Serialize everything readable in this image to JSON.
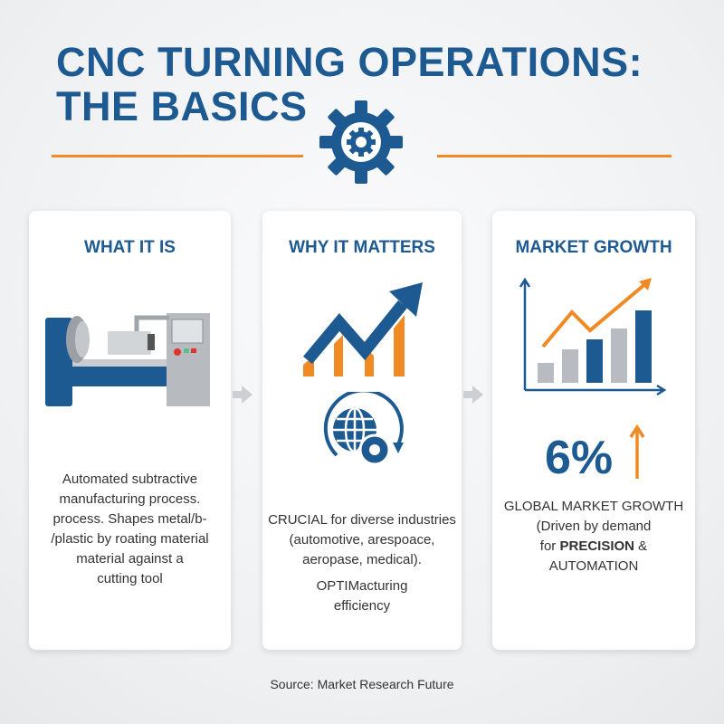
{
  "header": {
    "title_line1": "CNC TURNING OPERATIONS:",
    "title_line2": "THE BASICS",
    "icon": "gear-icon"
  },
  "colors": {
    "blue": "#1d5a91",
    "orange": "#f08a24",
    "gray": "#b8bcc2"
  },
  "cards": [
    {
      "title": "WHAT IT IS",
      "icon": "cnc-lathe-icon",
      "text": [
        "Automated subtractive",
        "manufacturing process.",
        "process. Shapes metal/b-",
        "/plastic by roating material",
        "material against a",
        "cutting tool"
      ]
    },
    {
      "title": "WHY IT MATTERS",
      "icon": "trend-up-icon",
      "icon2": "globe-gear-icon",
      "text": [
        "CRUCIAL for diverse industries",
        "(automotive, arespoace,",
        "aeropase, medical)."
      ],
      "text2": [
        "OPTIMacturing",
        "efficiency"
      ]
    },
    {
      "title": "MARKET GROWTH",
      "icon": "bar-chart-growth-icon",
      "stat": "6%",
      "stat_icon": "arrow-up-icon",
      "text1": "GLOBAL MARKET GROWTH",
      "text2": "(Driven by demand",
      "text3_pre": "for ",
      "text3_bold": "PRECISION",
      "text3_post": " &",
      "text4": "AUTOMATION"
    }
  ],
  "footer": {
    "source": "Source: Market Research Future"
  }
}
